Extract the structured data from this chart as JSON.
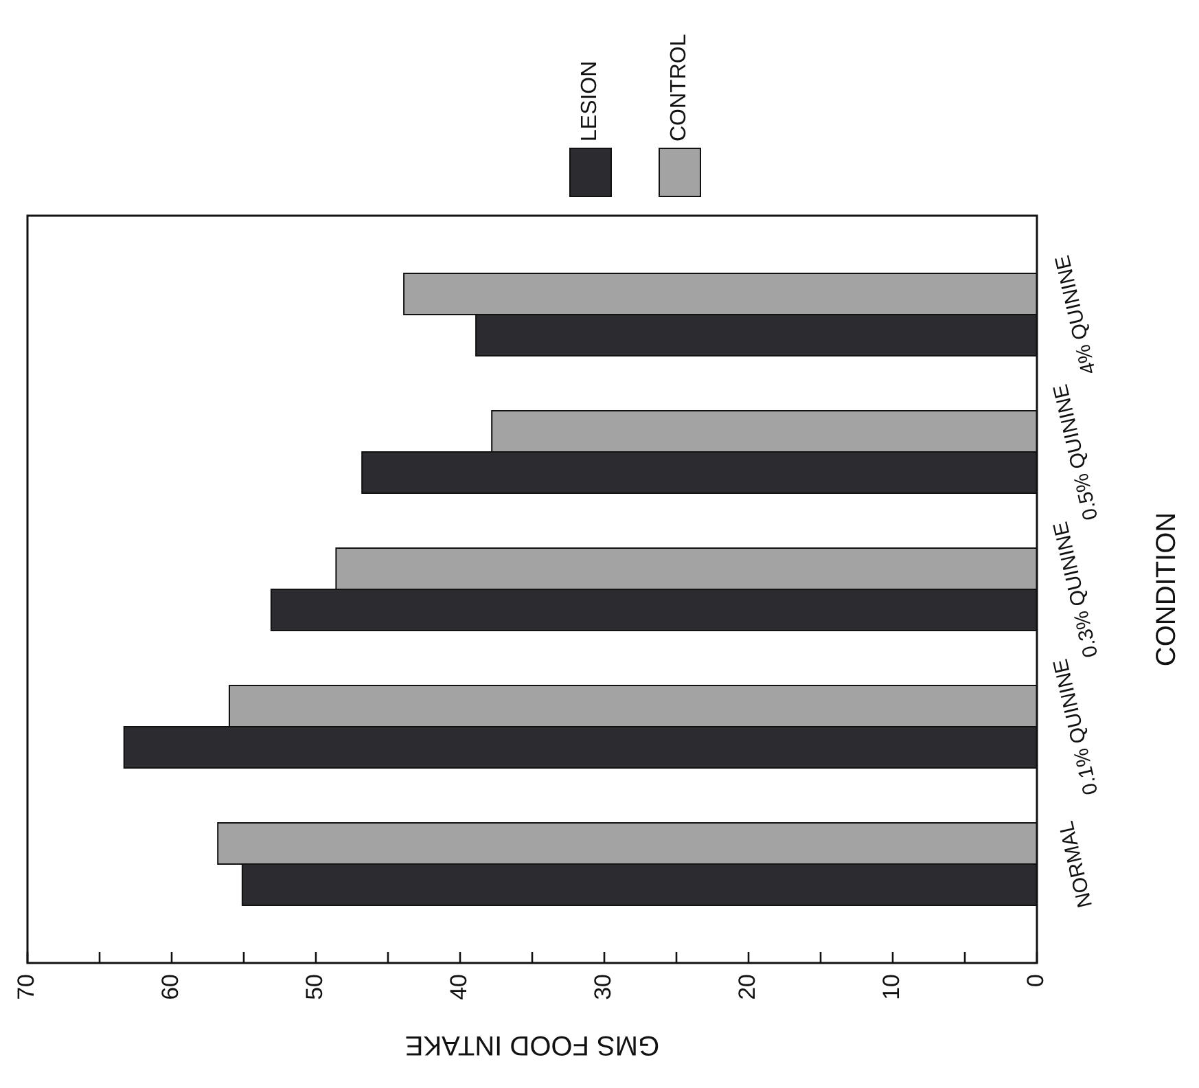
{
  "chart_data": {
    "type": "bar",
    "orientation": "horizontal",
    "xlabel": "GMS FOOD INTAKE",
    "ylabel": "CONDITION",
    "categories": [
      "4% QUININE",
      "0.5% QUININE",
      "0.3% QUININE",
      "0.1% QUININE",
      "NORMAL"
    ],
    "series": [
      {
        "name": "LESION",
        "color": "#2b2b30",
        "values": [
          38.9,
          46.8,
          53.1,
          63.3,
          55.1
        ]
      },
      {
        "name": "CONTROL",
        "color": "#a3a3a3",
        "values": [
          43.9,
          37.8,
          48.6,
          56.0,
          56.8
        ]
      }
    ],
    "xlim": [
      70,
      0
    ],
    "xticks": [
      70,
      {
        "value": 65,
        "label": null
      },
      60,
      {
        "value": 55,
        "label": null
      },
      50,
      {
        "value": 45,
        "label": null
      },
      40,
      {
        "value": 35,
        "label": null
      },
      30,
      {
        "value": 25,
        "label": null
      },
      20,
      {
        "value": 15,
        "label": null
      },
      10,
      {
        "value": 5,
        "label": null
      },
      0
    ],
    "legend": "top right",
    "grid": false
  }
}
